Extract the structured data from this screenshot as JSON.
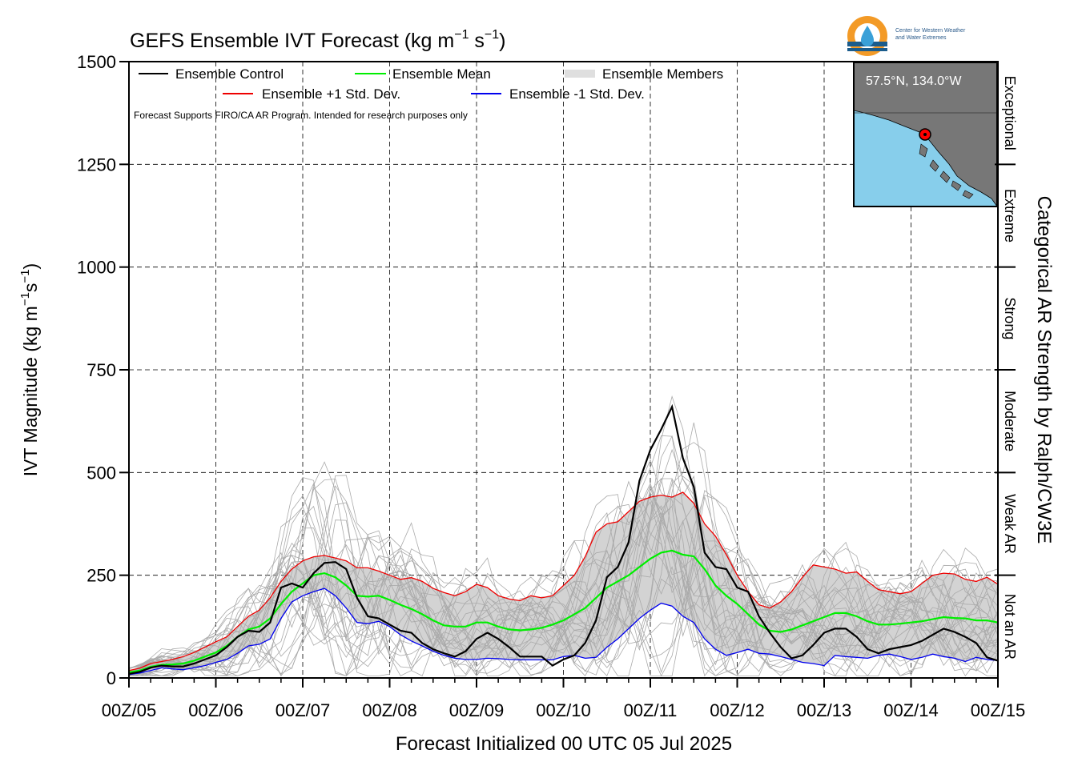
{
  "title": "GEFS Ensemble IVT Forecast (kg m",
  "title_sup1": "−1",
  "title_mid": " s",
  "title_sup2": "−1",
  "title_end": ")",
  "logo": {
    "line1": "Center for Western Weather",
    "line2": "and Water Extremes"
  },
  "location_label": "57.5°N, 134.0°W",
  "disclaimer": "Forecast Supports FIRO/CA AR Program. Intended for research purposes only",
  "right_axis_title": "Categorical AR Strength by Ralph/CW3E",
  "categories": [
    {
      "name": "Not an AR",
      "lo": 0,
      "hi": 250
    },
    {
      "name": "Weak AR",
      "lo": 250,
      "hi": 500
    },
    {
      "name": "Moderate",
      "lo": 500,
      "hi": 750
    },
    {
      "name": "Strong",
      "lo": 750,
      "hi": 1000
    },
    {
      "name": "Extreme",
      "lo": 1000,
      "hi": 1250
    },
    {
      "name": "Exceptional",
      "lo": 1250,
      "hi": 1500
    }
  ],
  "colors": {
    "control": "#000000",
    "mean": "#00ee00",
    "plus_sd": "#ee0000",
    "minus_sd": "#0000ee",
    "members": "#aaaaaa",
    "band": "#d3d3d3",
    "ocean": "#87ceeb",
    "land": "#777777",
    "marker": "#ff0000"
  },
  "chart_data": {
    "type": "line",
    "title": "GEFS Ensemble IVT Forecast (kg m−1 s−1)",
    "xlabel": "Forecast Initialized 00 UTC 05 Jul 2025",
    "ylabel": "IVT Magnitude (kg m−1s−1)",
    "ylim": [
      0,
      1500
    ],
    "yticks": [
      "0",
      "250",
      "500",
      "750",
      "1000",
      "1250",
      "1500"
    ],
    "xlim": [
      0,
      10
    ],
    "x_unit": "days since 00Z/05",
    "xticks": [
      "00Z/05",
      "00Z/06",
      "00Z/07",
      "00Z/08",
      "00Z/09",
      "00Z/10",
      "00Z/11",
      "00Z/12",
      "00Z/13",
      "00Z/14",
      "00Z/15"
    ],
    "grid": true,
    "legend": [
      {
        "key": "control",
        "label": "Ensemble Control"
      },
      {
        "key": "mean",
        "label": "Ensemble Mean"
      },
      {
        "key": "members",
        "label": "Ensemble Members"
      },
      {
        "key": "plus_sd",
        "label": "Ensemble +1 Std. Dev."
      },
      {
        "key": "minus_sd",
        "label": "Ensemble -1 Std. Dev."
      }
    ],
    "x": [
      0,
      0.125,
      0.25,
      0.375,
      0.5,
      0.625,
      0.75,
      0.875,
      1.0,
      1.125,
      1.25,
      1.375,
      1.5,
      1.625,
      1.75,
      1.875,
      2.0,
      2.125,
      2.25,
      2.375,
      2.5,
      2.625,
      2.75,
      2.875,
      3.0,
      3.125,
      3.25,
      3.375,
      3.5,
      3.625,
      3.75,
      3.875,
      4.0,
      4.125,
      4.25,
      4.375,
      4.5,
      4.625,
      4.75,
      4.875,
      5.0,
      5.125,
      5.25,
      5.375,
      5.5,
      5.625,
      5.75,
      5.875,
      6.0,
      6.125,
      6.25,
      6.375,
      6.5,
      6.625,
      6.75,
      6.875,
      7.0,
      7.125,
      7.25,
      7.375,
      7.5,
      7.625,
      7.75,
      7.875,
      8.0,
      8.125,
      8.25,
      8.375,
      8.5,
      8.625,
      8.75,
      8.875,
      9.0,
      9.125,
      9.25,
      9.375,
      9.5,
      9.625,
      9.75,
      9.875,
      10.0
    ],
    "series": [
      {
        "name": "Ensemble Control",
        "key": "control",
        "values": [
          10,
          15,
          25,
          30,
          28,
          28,
          35,
          45,
          55,
          75,
          100,
          115,
          112,
          135,
          220,
          230,
          220,
          255,
          280,
          282,
          265,
          195,
          150,
          145,
          130,
          115,
          110,
          85,
          70,
          60,
          52,
          65,
          95,
          110,
          95,
          75,
          52,
          52,
          52,
          30,
          45,
          55,
          85,
          140,
          245,
          270,
          330,
          480,
          555,
          605,
          660,
          535,
          465,
          305,
          270,
          265,
          220,
          210,
          150,
          110,
          75,
          48,
          55,
          80,
          110,
          120,
          120,
          100,
          70,
          60,
          70,
          75,
          80,
          90,
          105,
          120,
          112,
          100,
          85,
          50,
          42
        ]
      },
      {
        "name": "Ensemble Mean",
        "key": "mean",
        "values": [
          14,
          18,
          27,
          32,
          33,
          35,
          42,
          52,
          62,
          78,
          100,
          118,
          125,
          145,
          180,
          210,
          230,
          250,
          255,
          245,
          225,
          200,
          198,
          200,
          190,
          178,
          168,
          155,
          140,
          128,
          125,
          125,
          135,
          135,
          125,
          118,
          116,
          118,
          122,
          130,
          140,
          155,
          170,
          195,
          220,
          235,
          250,
          270,
          290,
          305,
          310,
          300,
          296,
          265,
          225,
          200,
          180,
          155,
          130,
          115,
          112,
          118,
          128,
          138,
          148,
          158,
          158,
          150,
          138,
          130,
          130,
          132,
          135,
          138,
          143,
          148,
          146,
          145,
          140,
          140,
          135
        ]
      },
      {
        "name": "Ensemble +1 Std. Dev.",
        "key": "plus_sd",
        "values": [
          18,
          24,
          35,
          40,
          45,
          52,
          62,
          75,
          88,
          100,
          125,
          150,
          165,
          195,
          235,
          265,
          285,
          295,
          298,
          292,
          285,
          268,
          268,
          260,
          250,
          240,
          244,
          235,
          218,
          208,
          200,
          210,
          228,
          220,
          200,
          192,
          188,
          200,
          195,
          200,
          225,
          250,
          295,
          355,
          375,
          380,
          405,
          430,
          440,
          445,
          440,
          452,
          425,
          375,
          345,
          300,
          250,
          210,
          178,
          170,
          185,
          210,
          245,
          275,
          270,
          265,
          255,
          258,
          235,
          215,
          210,
          205,
          210,
          230,
          250,
          255,
          253,
          240,
          235,
          245,
          228
        ]
      },
      {
        "name": "Ensemble -1 Std. Dev.",
        "key": "minus_sd",
        "values": [
          8,
          12,
          18,
          25,
          22,
          20,
          25,
          30,
          38,
          45,
          60,
          78,
          82,
          95,
          145,
          185,
          200,
          210,
          218,
          200,
          170,
          135,
          132,
          138,
          125,
          105,
          90,
          78,
          65,
          55,
          48,
          45,
          45,
          48,
          47,
          45,
          44,
          44,
          44,
          44,
          52,
          55,
          48,
          50,
          75,
          95,
          120,
          145,
          165,
          182,
          175,
          150,
          135,
          95,
          70,
          55,
          62,
          70,
          60,
          58,
          52,
          45,
          38,
          35,
          30,
          55,
          52,
          50,
          48,
          55,
          58,
          52,
          45,
          50,
          58,
          52,
          48,
          40,
          50,
          45,
          42
        ]
      }
    ],
    "members_range": [
      0,
      775
    ]
  }
}
